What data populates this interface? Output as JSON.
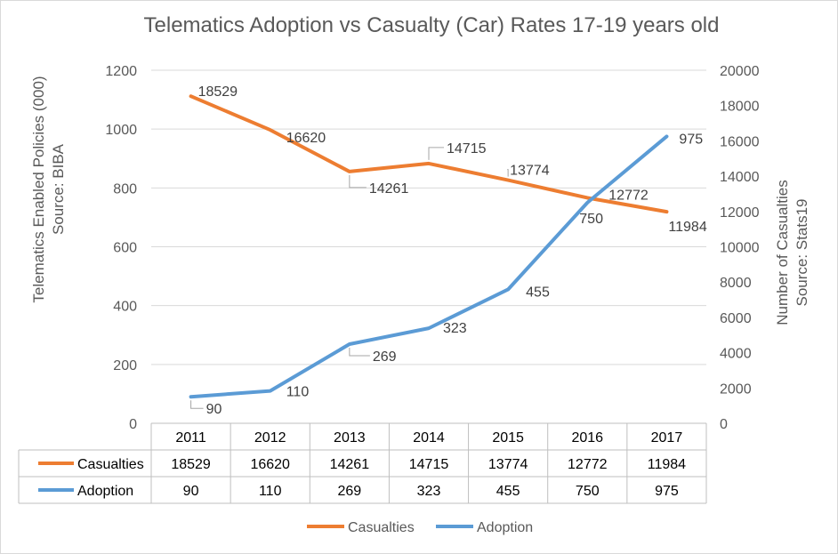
{
  "chart_data": {
    "type": "line",
    "title": "Telematics Adoption vs Casualty (Car) Rates 17-19 years old",
    "categories": [
      "2011",
      "2012",
      "2013",
      "2014",
      "2015",
      "2016",
      "2017"
    ],
    "y_left": {
      "label_line1": "Telematics Enabled Policies (000)",
      "label_line2": "Source: BIBA",
      "range": [
        0,
        1200
      ],
      "ticks": [
        "0",
        "200",
        "400",
        "600",
        "800",
        "1000",
        "1200"
      ]
    },
    "y_right": {
      "label_line1": "Number of Casualties",
      "label_line2": "Source: Stats19",
      "range": [
        0,
        20000
      ],
      "ticks": [
        "0",
        "2000",
        "4000",
        "6000",
        "8000",
        "10000",
        "12000",
        "14000",
        "16000",
        "18000",
        "20000"
      ]
    },
    "series": [
      {
        "name": "Casualties",
        "axis": "right",
        "color": "#ed7d31",
        "values": [
          18529,
          16620,
          14261,
          14715,
          13774,
          12772,
          11984
        ]
      },
      {
        "name": "Adoption",
        "axis": "left",
        "color": "#5b9bd5",
        "values": [
          90,
          110,
          269,
          323,
          455,
          750,
          975
        ]
      }
    ],
    "grid": true,
    "legend": "bottom",
    "data_table": true
  }
}
